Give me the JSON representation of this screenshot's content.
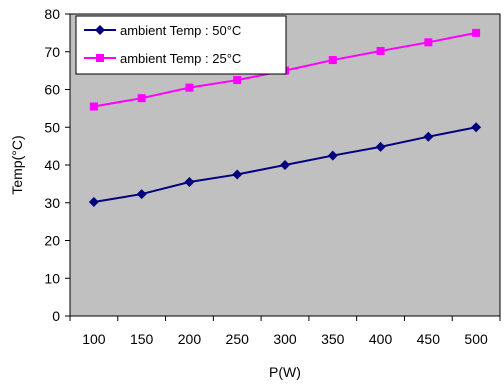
{
  "chart_data": {
    "type": "line",
    "xlabel": "P(W)",
    "ylabel": "Temp(°C)",
    "categories": [
      "100",
      "150",
      "200",
      "250",
      "300",
      "350",
      "400",
      "450",
      "500"
    ],
    "ylim": [
      0,
      80
    ],
    "y_ticks": [
      "0",
      "10",
      "20",
      "30",
      "40",
      "50",
      "60",
      "70",
      "80"
    ],
    "grid": false,
    "legend_position": "top-left",
    "plot_background": "#c0c0c0",
    "series": [
      {
        "name": "ambient Temp : 50°C",
        "color": "#000080",
        "marker": "diamond",
        "values": [
          30.2,
          32.3,
          35.5,
          37.5,
          40,
          42.5,
          44.8,
          47.5,
          50
        ]
      },
      {
        "name": "ambient Temp : 25°C",
        "color": "#ff00ff",
        "marker": "square",
        "values": [
          55.5,
          57.7,
          60.5,
          62.5,
          65,
          67.8,
          70.2,
          72.5,
          75
        ]
      }
    ]
  }
}
